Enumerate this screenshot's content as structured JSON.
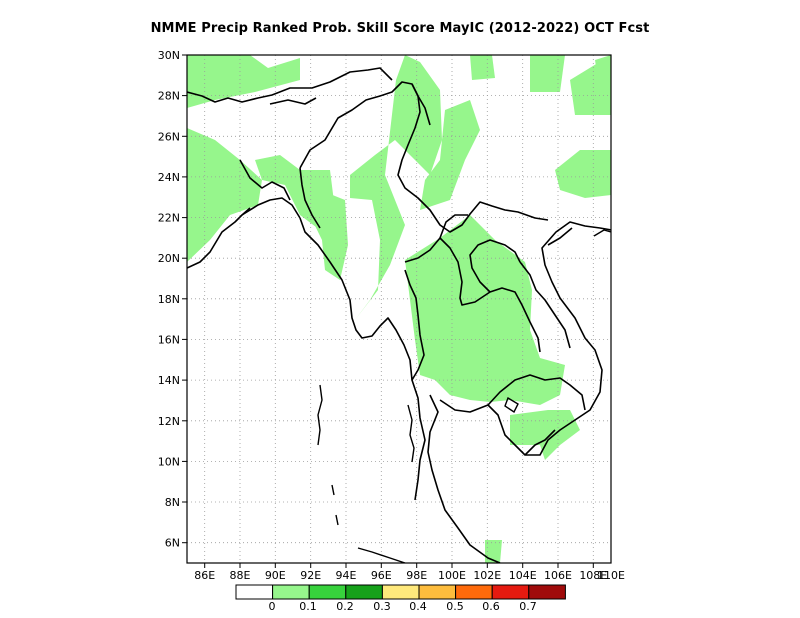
{
  "title": "NMME Precip Ranked Prob. Skill Score MayIC (2012-2022) OCT Fcst",
  "map": {
    "lon_range": [
      86,
      110
    ],
    "lat_range": [
      5,
      30
    ],
    "x_ticks": [
      "86E",
      "88E",
      "90E",
      "92E",
      "94E",
      "96E",
      "98E",
      "100E",
      "102E",
      "104E",
      "106E",
      "108E",
      "110E"
    ],
    "y_ticks": [
      "6N",
      "8N",
      "10N",
      "12N",
      "14N",
      "16N",
      "18N",
      "20N",
      "22N",
      "24N",
      "26N",
      "28N",
      "30N"
    ],
    "grid": true
  },
  "legend": {
    "colors": [
      "#ffffff",
      "#96f68c",
      "#37d23c",
      "#16a11a",
      "#ffe97c",
      "#fdbc3d",
      "#fe6a0b",
      "#e51a10",
      "#a00b0b"
    ],
    "labels": [
      "0",
      "0.1",
      "0.2",
      "0.3",
      "0.4",
      "0.5",
      "0.6",
      "0.7"
    ]
  }
}
